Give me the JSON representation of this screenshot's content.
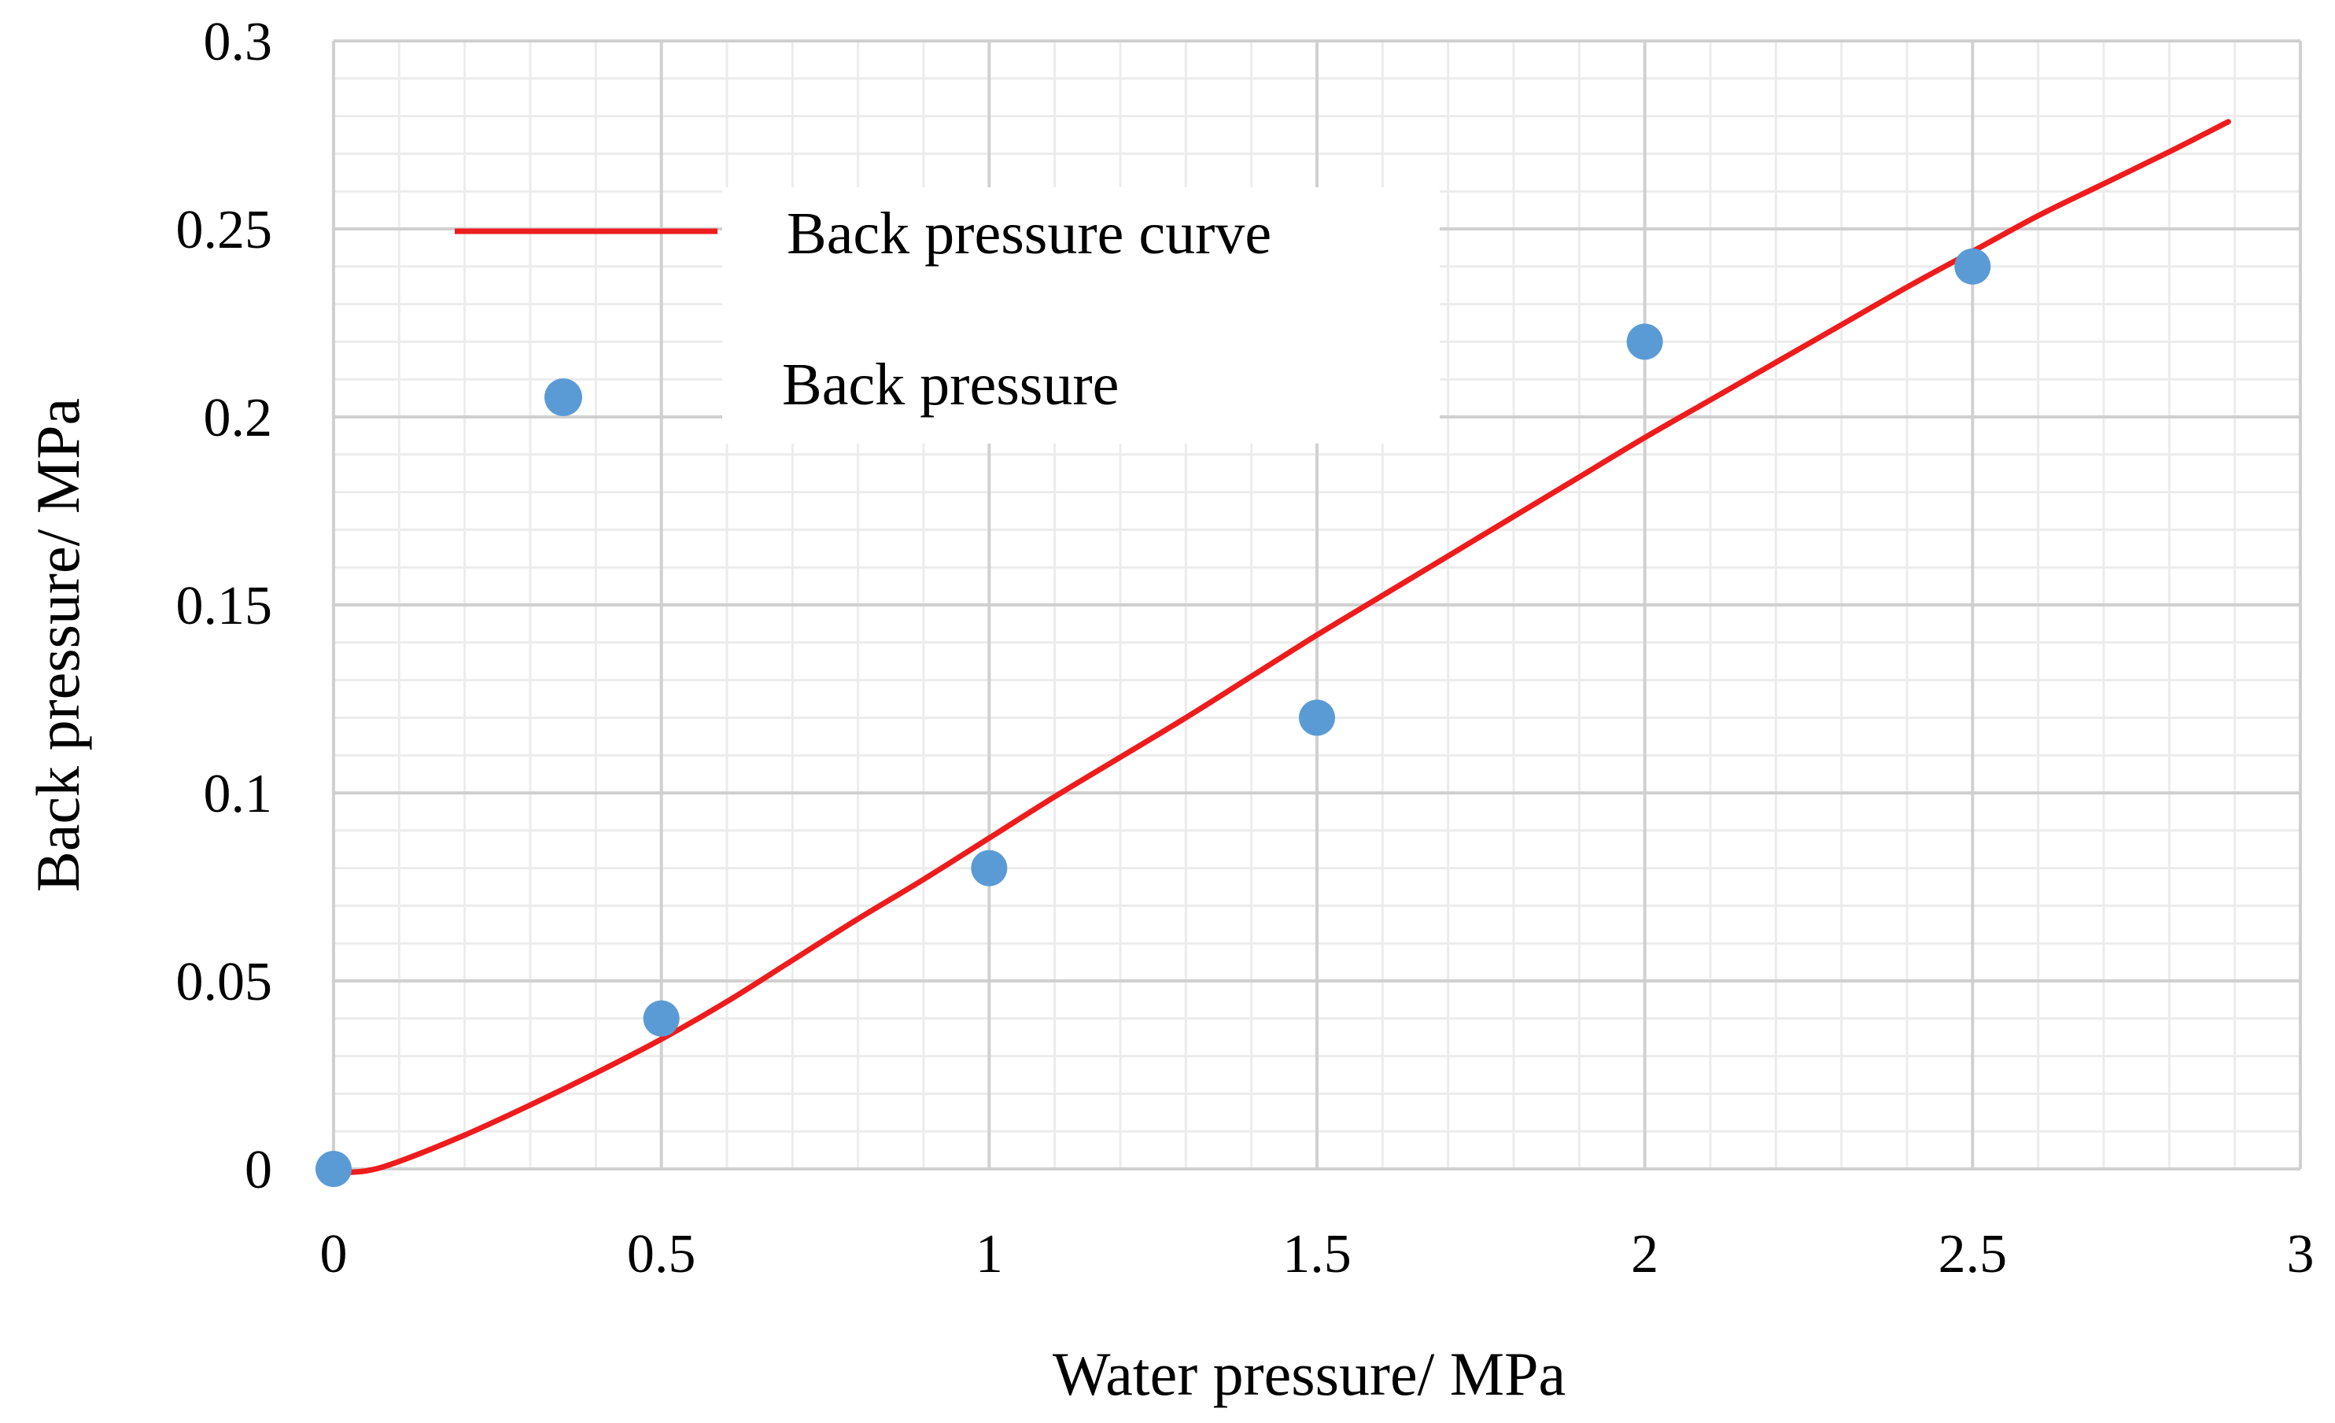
{
  "chart_data": {
    "type": "scatter",
    "title": "",
    "xlabel": "Water pressure/ MPa",
    "ylabel": "Back pressure/ MPa",
    "xlim": [
      0,
      3
    ],
    "ylim": [
      0,
      0.3
    ],
    "x_ticks": [
      0,
      0.5,
      1,
      1.5,
      2,
      2.5,
      3
    ],
    "x_tick_labels": [
      "0",
      "0.5",
      "1",
      "1.5",
      "2",
      "2.5",
      "3"
    ],
    "y_ticks": [
      0,
      0.05,
      0.1,
      0.15,
      0.2,
      0.25,
      0.3
    ],
    "y_tick_labels": [
      "0",
      "0.05",
      "0.1",
      "0.15",
      "0.2",
      "0.25",
      "0.3"
    ],
    "grid": "major and minor",
    "legend_position": "top-left",
    "series": [
      {
        "name": "Back pressure curve",
        "kind": "line",
        "color": "#ee1c1c",
        "x": [
          0,
          0.05,
          0.1,
          0.2,
          0.3,
          0.4,
          0.5,
          0.6,
          0.7,
          0.8,
          0.9,
          1.0,
          1.1,
          1.2,
          1.3,
          1.4,
          1.5,
          1.6,
          1.7,
          1.8,
          1.9,
          2.0,
          2.1,
          2.2,
          2.3,
          2.4,
          2.5,
          2.6,
          2.7,
          2.8,
          2.89
        ],
        "y": [
          -0.001,
          -0.0005,
          0.002,
          0.009,
          0.017,
          0.0255,
          0.0345,
          0.0445,
          0.0555,
          0.0665,
          0.077,
          0.088,
          0.099,
          0.1095,
          0.12,
          0.131,
          0.142,
          0.1525,
          0.163,
          0.1735,
          0.184,
          0.1945,
          0.2045,
          0.2145,
          0.2245,
          0.2345,
          0.244,
          0.2535,
          0.262,
          0.2705,
          0.2785
        ]
      },
      {
        "name": "Back pressure",
        "kind": "scatter",
        "color": "#5b9bd5",
        "x": [
          0,
          0.5,
          1,
          1.5,
          2,
          2.5
        ],
        "y": [
          0,
          0.04,
          0.08,
          0.12,
          0.22,
          0.24
        ]
      }
    ]
  }
}
